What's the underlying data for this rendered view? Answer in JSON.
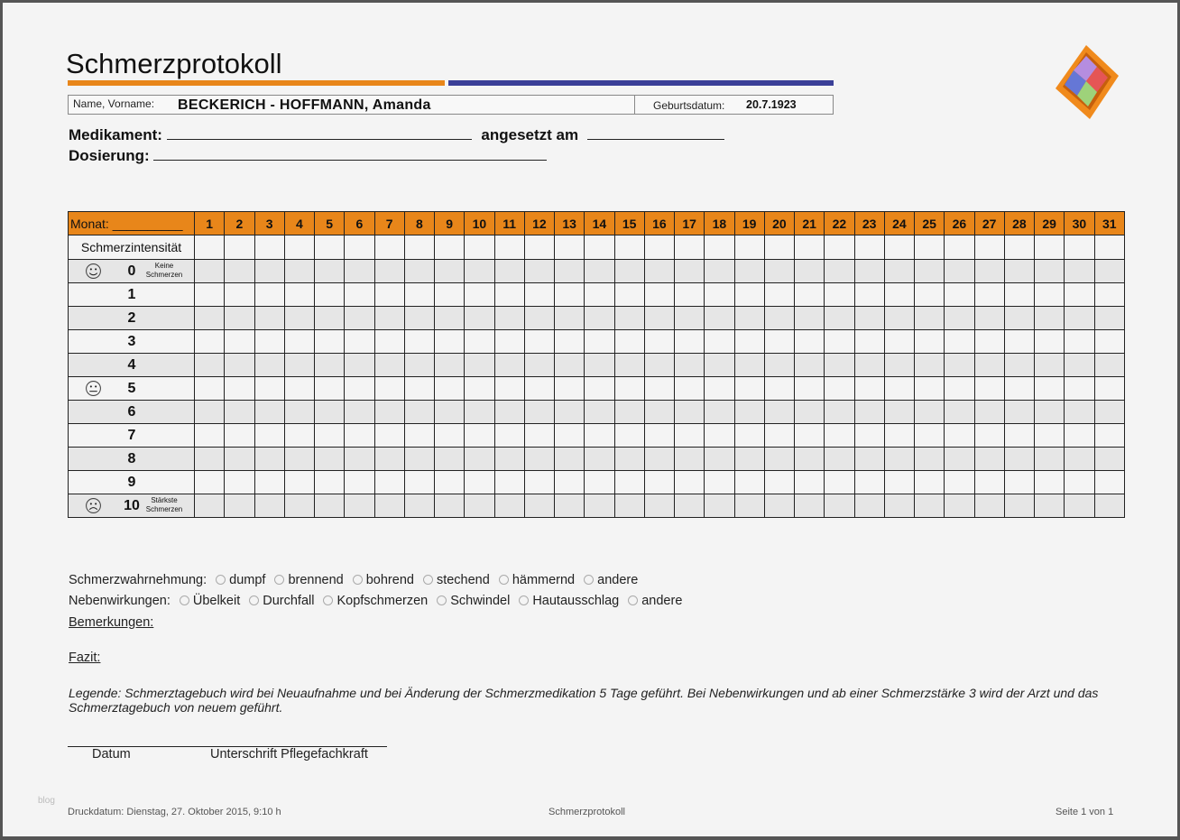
{
  "header": {
    "title": "Schmerzprotokoll",
    "name_label": "Name, Vorname:",
    "name_value": "BECKERICH - HOFFMANN, Amanda",
    "birth_label": "Geburtsdatum:",
    "birth_value": "20.7.1923"
  },
  "fields": {
    "medikament_label": "Medikament:",
    "angesetzt_label": "angesetzt am",
    "dosierung_label": "Dosierung:"
  },
  "table": {
    "month_label": "Monat: __________",
    "intensity_label": "Schmerzintensität",
    "days": [
      "1",
      "2",
      "3",
      "4",
      "5",
      "6",
      "7",
      "8",
      "9",
      "10",
      "11",
      "12",
      "13",
      "14",
      "15",
      "16",
      "17",
      "18",
      "19",
      "20",
      "21",
      "22",
      "23",
      "24",
      "25",
      "26",
      "27",
      "28",
      "29",
      "30",
      "31"
    ],
    "levels": [
      {
        "value": "0",
        "icon": "smiling-face-icon",
        "note": "Keine Schmerzen"
      },
      {
        "value": "1"
      },
      {
        "value": "2"
      },
      {
        "value": "3"
      },
      {
        "value": "4"
      },
      {
        "value": "5",
        "icon": "neutral-face-icon"
      },
      {
        "value": "6"
      },
      {
        "value": "7"
      },
      {
        "value": "8"
      },
      {
        "value": "9"
      },
      {
        "value": "10",
        "icon": "sad-face-icon",
        "note": "Stärkste Schmerzen"
      }
    ]
  },
  "perception": {
    "label": "Schmerzwahrnehmung:",
    "options": [
      "dumpf",
      "brennend",
      "bohrend",
      "stechend",
      "hämmernd",
      "andere"
    ]
  },
  "side_effects": {
    "label": "Nebenwirkungen:",
    "options": [
      "Übelkeit",
      "Durchfall",
      "Kopfschmerzen",
      "Schwindel",
      "Hautausschlag",
      "andere"
    ]
  },
  "remarks_label": "Bemerkungen:",
  "fazit_label": "Fazit:",
  "legend": "Legende: Schmerztagebuch wird bei Neuaufnahme und bei Änderung der Schmerzmedikation 5 Tage geführt. Bei Nebenwirkungen und ab einer Schmerzstärke 3 wird der Arzt und das Schmerztagebuch von neuem geführt.",
  "signature": {
    "date_label": "Datum",
    "signature_label": "Unterschrift Pflegefachkraft"
  },
  "footer": {
    "watermark": "blog",
    "print_date": "Druckdatum: Dienstag, 27. Oktober 2015, 9:10 h",
    "center": "Schmerzprotokoll",
    "page": "Seite 1 von 1"
  },
  "colors": {
    "orange": "#e8861a",
    "blue": "#3a3f97",
    "row_gray": "#e6e6e6"
  }
}
